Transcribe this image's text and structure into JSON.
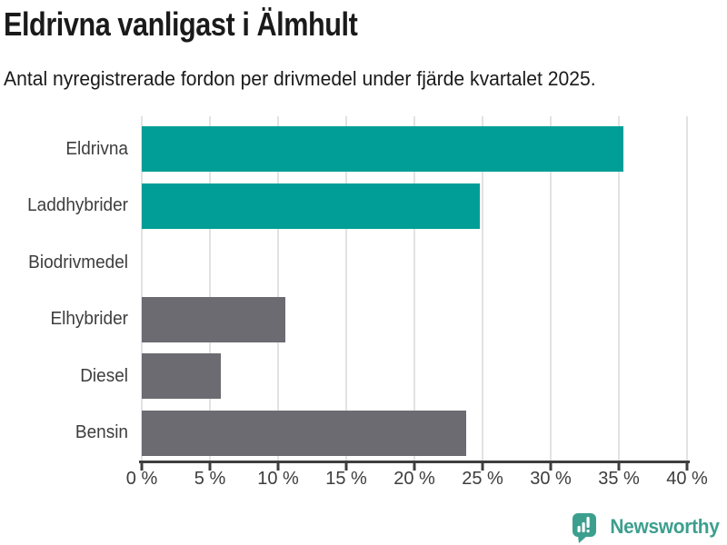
{
  "chart_data": {
    "type": "bar",
    "orientation": "horizontal",
    "title": "Eldrivna vanligast i Älmhult",
    "subtitle": "Antal nyregistrerade fordon per drivmedel under fjärde kvartalet 2025.",
    "categories": [
      "Eldrivna",
      "Laddhybrider",
      "Biodrivmedel",
      "Elhybrider",
      "Diesel",
      "Bensin"
    ],
    "values": [
      35.3,
      24.8,
      0,
      10.5,
      5.8,
      23.8
    ],
    "unit": "%",
    "bar_colors": [
      "#009e96",
      "#009e96",
      "#6c6b72",
      "#6c6b72",
      "#6c6b72",
      "#6c6b72"
    ],
    "highlight_color": "#009e96",
    "default_color": "#6c6b72",
    "xlim": [
      0,
      40
    ],
    "x_ticks": [
      {
        "value": 0,
        "label": "0 %"
      },
      {
        "value": 5,
        "label": "5 %"
      },
      {
        "value": 10,
        "label": "10 %"
      },
      {
        "value": 15,
        "label": "15 %"
      },
      {
        "value": 20,
        "label": "20 %"
      },
      {
        "value": 25,
        "label": "25 %"
      },
      {
        "value": 30,
        "label": "30 %"
      },
      {
        "value": 35,
        "label": "35 %"
      },
      {
        "value": 40,
        "label": "40 %"
      }
    ],
    "grid": true,
    "gridline_color": "#e2e2e2",
    "axis_color": "#3e3e3e",
    "legend": "none"
  },
  "footer": {
    "brand": "Newsworthy",
    "brand_color": "#3c9f8e",
    "icon": "bar-chart-speech-bubble-icon"
  }
}
